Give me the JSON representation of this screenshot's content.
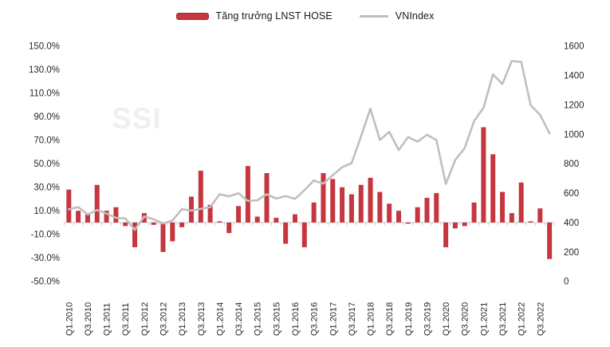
{
  "legend": {
    "items": [
      {
        "label": "Tăng trưởng LNST HOSE",
        "type": "bar",
        "color": "#c5363f"
      },
      {
        "label": "VNIndex",
        "type": "line",
        "color": "#bfbfbf"
      }
    ]
  },
  "watermark": "SSI",
  "colors": {
    "bar": "#c5363f",
    "bar_border": "#a12b34",
    "line": "#bfbfbf",
    "axis": "#d0d0d0",
    "tick": "#c6c6c6",
    "label_text": "#262626"
  },
  "chart_data": {
    "type": "bar+line combo",
    "title": "",
    "categories": [
      "Q1.2010",
      "Q2.2010",
      "Q3.2010",
      "Q4.2010",
      "Q1.2011",
      "Q2.2011",
      "Q3.2011",
      "Q4.2011",
      "Q1.2012",
      "Q2.2012",
      "Q3.2012",
      "Q4.2012",
      "Q1.2013",
      "Q2.2013",
      "Q3.2013",
      "Q4.2013",
      "Q1.2014",
      "Q2.2014",
      "Q3.2014",
      "Q4.2014",
      "Q1.2015",
      "Q2.2015",
      "Q3.2015",
      "Q4.2015",
      "Q1.2016",
      "Q2.2016",
      "Q3.2016",
      "Q4.2016",
      "Q1.2017",
      "Q2.2017",
      "Q3.2017",
      "Q4.2017",
      "Q1.2018",
      "Q2.2018",
      "Q3.2018",
      "Q4.2018",
      "Q1.2019",
      "Q2.2019",
      "Q3.2019",
      "Q4.2019",
      "Q1.2020",
      "Q2.2020",
      "Q3.2020",
      "Q4.2020",
      "Q1.2021",
      "Q2.2021",
      "Q3.2021",
      "Q4.2021",
      "Q1.2022",
      "Q2.2022",
      "Q3.2022",
      "Q4.2022"
    ],
    "x_tick_labels_shown": [
      "Q1.2010",
      "Q3.2010",
      "Q1.2011",
      "Q3.2011",
      "Q1.2012",
      "Q3.2012",
      "Q1.2013",
      "Q3.2013",
      "Q1.2014",
      "Q3.2014",
      "Q1.2015",
      "Q3.2015",
      "Q1.2016",
      "Q3.2016",
      "Q1.2017",
      "Q3.2017",
      "Q1.2018",
      "Q3.2018",
      "Q1.2019",
      "Q3.2019",
      "Q1.2020",
      "Q3.2020",
      "Q1.2021",
      "Q3.2021",
      "Q1.2022",
      "Q3.2022"
    ],
    "series": [
      {
        "name": "Tăng trưởng LNST HOSE",
        "type": "bar",
        "axis": "left",
        "unit": "%",
        "values": [
          28,
          10,
          7,
          32,
          10,
          13,
          -3,
          -21,
          8,
          -2,
          -25,
          -16,
          -4,
          22,
          44,
          15,
          1,
          -9,
          14,
          48,
          5,
          42,
          4,
          -18,
          7,
          -21,
          17,
          42,
          37,
          30,
          24,
          32,
          38,
          26,
          16,
          10,
          -1,
          13,
          21,
          25,
          -21,
          -5,
          -3,
          17,
          81,
          58,
          26,
          8,
          34,
          1,
          12,
          -31
        ]
      },
      {
        "name": "VNIndex",
        "type": "line",
        "axis": "right",
        "unit": "points",
        "values": [
          490,
          505,
          455,
          485,
          461,
          432,
          428,
          351,
          441,
          422,
          393,
          414,
          491,
          481,
          493,
          505,
          592,
          578,
          599,
          546,
          551,
          593,
          563,
          579,
          561,
          620,
          686,
          665,
          722,
          776,
          804,
          984,
          1174,
          961,
          1017,
          893,
          981,
          950,
          997,
          961,
          663,
          825,
          905,
          1090,
          1180,
          1408,
          1342,
          1498,
          1492,
          1198,
          1132,
          1007
        ]
      }
    ],
    "left_axis": {
      "min": -50,
      "max": 150,
      "step": 20,
      "tick_labels": [
        "150.0%",
        "130.0%",
        "110.0%",
        "90.0%",
        "70.0%",
        "50.0%",
        "30.0%",
        "10.0%",
        "-10.0%",
        "-30.0%",
        "-50.0%"
      ]
    },
    "right_axis": {
      "min": 0,
      "max": 1600,
      "step": 200,
      "tick_labels": [
        "1600",
        "1400",
        "1200",
        "1000",
        "800",
        "600",
        "400",
        "200",
        "0"
      ]
    },
    "grid": false,
    "legend_position": "top-center"
  }
}
